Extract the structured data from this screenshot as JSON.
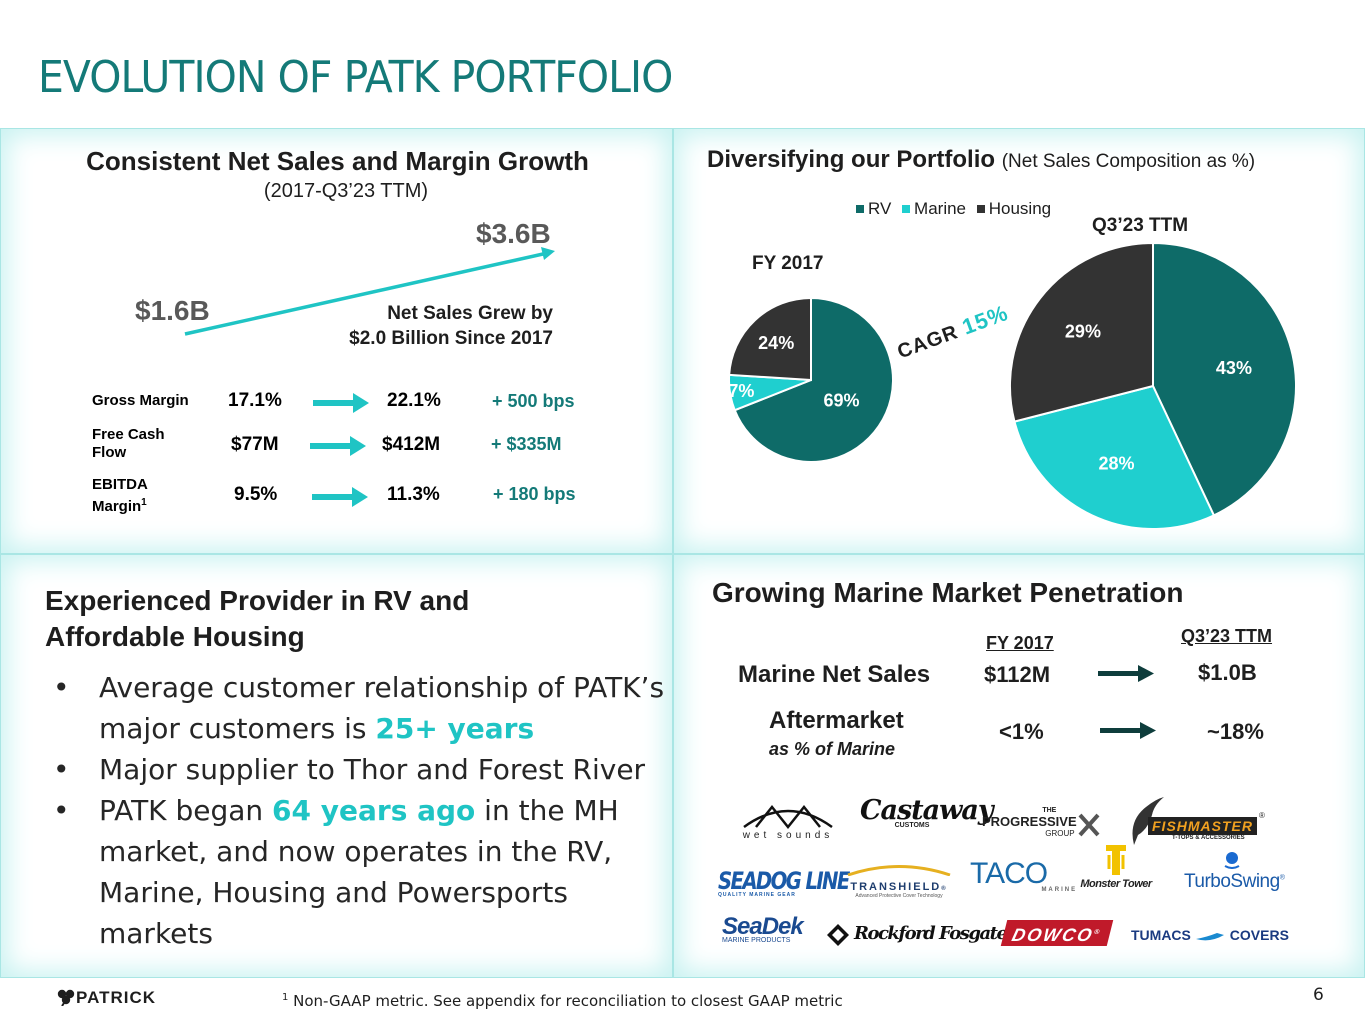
{
  "title": "EVOLUTION OF PATK PORTFOLIO",
  "net_sales": {
    "title": "Consistent Net Sales and Margin Growth",
    "subtitle": "(2017-Q3’23 TTM)",
    "start_value": "$1.6B",
    "end_value": "$3.6B",
    "note_line1": "Net Sales Grew by",
    "note_line2": "$2.0 Billion Since 2017",
    "metrics": [
      {
        "label_line1": "Gross Margin",
        "label_line2": "",
        "from": "17.1%",
        "to": "22.1%",
        "delta": "+ 500 bps"
      },
      {
        "label_line1": "Free Cash",
        "label_line2": "Flow",
        "from": "$77M",
        "to": "$412M",
        "delta": "+ $335M"
      },
      {
        "label_line1": "EBITDA",
        "label_line2": "Margin",
        "label_sup": "1",
        "from": "9.5%",
        "to": "11.3%",
        "delta": "+ 180 bps"
      }
    ]
  },
  "portfolio": {
    "title": "Diversifying our Portfolio",
    "subtitle": "(Net Sales Composition as %)",
    "cagr_label": "CAGR",
    "cagr_value": "15%"
  },
  "chart_data": [
    {
      "type": "pie",
      "title": "FY 2017",
      "legend": [
        "RV",
        "Marine",
        "Housing"
      ],
      "slices": [
        {
          "label": "RV",
          "value": 69,
          "text": "69%",
          "color": "#0e6b68"
        },
        {
          "label": "Marine",
          "value": 7,
          "text": "7%",
          "color": "#1fcfcf"
        },
        {
          "label": "Housing",
          "value": 24,
          "text": "24%",
          "color": "#333333"
        }
      ]
    },
    {
      "type": "pie",
      "title": "Q3’23 TTM",
      "legend": [
        "RV",
        "Marine",
        "Housing"
      ],
      "slices": [
        {
          "label": "RV",
          "value": 43,
          "text": "43%",
          "color": "#0e6b68"
        },
        {
          "label": "Marine",
          "value": 28,
          "text": "28%",
          "color": "#1fcfcf"
        },
        {
          "label": "Housing",
          "value": 29,
          "text": "29%",
          "color": "#333333"
        }
      ]
    }
  ],
  "experience": {
    "title_line1": "Experienced Provider in RV and",
    "title_line2": "Affordable Housing",
    "bullet1_a": "Average customer relationship of PATK’s major customers is ",
    "bullet1_hl": "25+ years",
    "bullet2": "Major supplier to Thor and Forest River",
    "bullet3_a": "PATK began ",
    "bullet3_hl": "64 years ago",
    "bullet3_b": " in the MH market, and now operates in the RV, Marine, Housing and Powersports markets"
  },
  "marine": {
    "title": "Growing Marine Market Penetration",
    "col1": "FY 2017",
    "col2": "Q3’23 TTM",
    "row1_label": "Marine Net Sales",
    "row1_from": "$112M",
    "row1_to": "$1.0B",
    "row2_label": "Aftermarket",
    "row2_sub": "as % of Marine",
    "row2_from": "<1%",
    "row2_to": "~18%",
    "logos": {
      "wet_sounds": "wet sounds",
      "castaway": "Castaway",
      "castaway_sub": "CUSTOMS",
      "progressive_small": "THE",
      "progressive": "PROGRESSIVE",
      "progressive_group": "GROUP",
      "fishmaster": "FISHMASTER",
      "fishmaster_reg": "®",
      "fishmaster_sub": "T-TOPS & ACCESSORIES",
      "seadogline": "SEADOG LINE",
      "seadogline_sub": "QUALITY MARINE GEAR",
      "transhield": "TRANSHIELD",
      "transhield_reg": "®",
      "transhield_sub": "Advanced Protective Cover Technology",
      "taco": "TACO",
      "taco_sub": "MARINE",
      "monster_tower": "Monster Tower",
      "turboswing": "TurboSwing",
      "turboswing_reg": "®",
      "seadek": "SeaDek",
      "seadek_sub": "MARINE PRODUCTS",
      "rockford": "Rockford Fosgate",
      "dowco": "DOWCO",
      "dowco_reg": "®",
      "tumacs_a": "TUMACS",
      "tumacs_b": "COVERS"
    }
  },
  "footer": {
    "logo": "PATRICK",
    "footnote_sup": "1",
    "footnote": " Non-GAAP metric. See appendix for reconciliation to closest GAAP metric",
    "page_number": "6"
  },
  "colors": {
    "title": "#147a78",
    "rv": "#0e6b68",
    "marine": "#1fcfcf",
    "housing": "#333333",
    "highlight": "#1fc4c4"
  },
  "icons": [
    "shamrock-icon",
    "arrow-right-icon"
  ]
}
